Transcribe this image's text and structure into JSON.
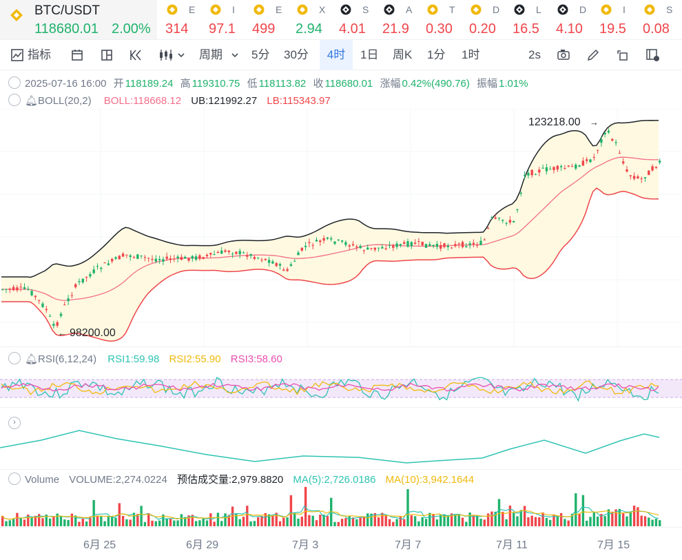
{
  "ticker": {
    "pair": "BTC/USDT",
    "price": "118680.01",
    "change": "2.00%",
    "others": [
      {
        "sym": "E",
        "val": "314",
        "color": "red",
        "icon": "bnb-icon"
      },
      {
        "sym": "I",
        "val": "97.1",
        "color": "red",
        "icon": "bnb-icon"
      },
      {
        "sym": "E",
        "val": "499",
        "color": "red",
        "icon": "bnb-icon"
      },
      {
        "sym": "X",
        "val": "2.94",
        "color": "green",
        "icon": "bnb-icon"
      },
      {
        "sym": "S",
        "val": "4.01",
        "color": "red",
        "icon": "binance-chain-icon"
      },
      {
        "sym": "A",
        "val": "21.9",
        "color": "red",
        "icon": "binance-chain-icon"
      },
      {
        "sym": "T",
        "val": "0.30",
        "color": "red",
        "icon": "bnb-icon"
      },
      {
        "sym": "D",
        "val": "0.20",
        "color": "red",
        "icon": "bnb-icon"
      },
      {
        "sym": "L",
        "val": "16.5",
        "color": "red",
        "icon": "binance-chain-icon"
      },
      {
        "sym": "D",
        "val": "4.10",
        "color": "red",
        "icon": "binance-chain-icon"
      },
      {
        "sym": "I",
        "val": "19.5",
        "color": "red",
        "icon": "bnb-icon"
      },
      {
        "sym": "S",
        "val": "0.08",
        "color": "red",
        "icon": "bnb-icon"
      }
    ]
  },
  "toolbar": {
    "indicators": "指标",
    "period": "周期",
    "intervals": [
      "5分",
      "30分",
      "4时",
      "1日",
      "周K",
      "1分",
      "1时"
    ],
    "active_interval": "4时",
    "refresh": "2s"
  },
  "ohlc": {
    "date": "2025-07-16 16:00",
    "open_label": "开",
    "open": "118189.24",
    "high_label": "高",
    "high": "119310.75",
    "low_label": "低",
    "low": "118113.82",
    "close_label": "收",
    "close": "118680.01",
    "amp_label": "涨幅",
    "amp": "0.42%(490.76)",
    "swing_label": "振幅",
    "swing": "1.01%"
  },
  "boll": {
    "name": "BOLL(20,2)",
    "mid": "BOLL:118668.12",
    "ub": "UB:121992.27",
    "lb": "LB:115343.97"
  },
  "rsi": {
    "name": "RSI(6,12,24)",
    "rsi1": "RSI1:59.98",
    "rsi2": "RSI2:55.90",
    "rsi3": "RSI3:58.60"
  },
  "volume": {
    "name": "Volume",
    "vol": "VOLUME:2,274.0224",
    "est": "预估成交量:2,979.8820",
    "ma5": "MA(5):2,726.0186",
    "ma10": "MA(10):3,942.1644"
  },
  "annotations": {
    "high": "123218.00",
    "low": "98200.00"
  },
  "x_labels": [
    "6月 25",
    "6月 29",
    "7月 3",
    "7月 7",
    "7月 11",
    "7月 15"
  ],
  "colors": {
    "up": "#20b26c",
    "down": "#ef454a",
    "boll_mid": "#f36e8a",
    "accent": "#3375e0",
    "rsi1": "#2dc3b3",
    "rsi2": "#f0b90b",
    "rsi3": "#e84fb0"
  },
  "chart_data": {
    "type": "candlestick",
    "title": "BTC/USDT 4H",
    "x": [
      "6月 25",
      "6月 29",
      "7月 3",
      "7月 7",
      "7月 11",
      "7月 15"
    ],
    "price_anchors": [
      {
        "label": "98200.00",
        "role": "period low"
      },
      {
        "label": "123218.00",
        "role": "period high"
      }
    ],
    "indicators": [
      "BOLL(20,2)",
      "RSI(6,12,24)",
      "Volume MA(5)",
      "Volume MA(10)"
    ]
  }
}
